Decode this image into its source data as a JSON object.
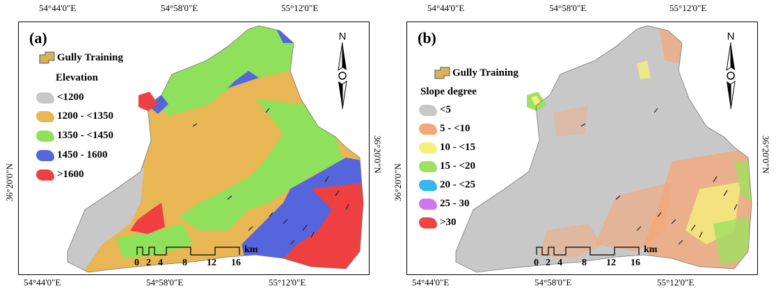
{
  "panels": [
    {
      "id": "a",
      "label": "(a)",
      "top_coords": [
        "54°44'0\"E",
        "54°58'0\"E",
        "55°12'0\"E"
      ],
      "bottom_coords": [
        "54°44'0\"E",
        "54°58'0\"E",
        "55°12'0\"E"
      ],
      "left_coord": "36°20'0\"N",
      "right_coord": "36°20'0\"N",
      "gully_label": "Gully Training",
      "legend_title": "Elevation",
      "legend_items": [
        {
          "label": "<1200",
          "color": "#c8c8c8"
        },
        {
          "label": "1200 - <1350",
          "color": "#e8b654"
        },
        {
          "label": "1350 - <1450",
          "color": "#8fe05a"
        },
        {
          "label": "1450 - 1600",
          "color": "#5566dd"
        },
        {
          "label": ">1600",
          "color": "#ee4040"
        }
      ],
      "north": "N",
      "scale": {
        "ticks": [
          "0",
          "2",
          "4",
          "8",
          "12",
          "16"
        ],
        "unit": "km"
      }
    },
    {
      "id": "b",
      "label": "(b)",
      "top_coords": [
        "54°44'0\"E",
        "54°58'0\"E",
        "55°12'0\"E"
      ],
      "bottom_coords": [
        "54°44'0\"E",
        "54°58'0\"E",
        "55°12'0\"E"
      ],
      "left_coord": "36°20'0\"N",
      "right_coord": "36°20'0\"N",
      "gully_label": "Gully Training",
      "legend_title": "Slope degree",
      "legend_items": [
        {
          "label": "<5",
          "color": "#c8c8c8"
        },
        {
          "label": "5 - <10",
          "color": "#f5a777"
        },
        {
          "label": "10 - <15",
          "color": "#f4f07a"
        },
        {
          "label": "15 - <20",
          "color": "#9fe060"
        },
        {
          "label": "20 - <25",
          "color": "#34b8ec"
        },
        {
          "label": "25 - 30",
          "color": "#cc77ee"
        },
        {
          "label": ">30",
          "color": "#ee4444"
        }
      ],
      "north": "N",
      "scale": {
        "ticks": [
          "0",
          "2",
          "4",
          "8",
          "12",
          "16"
        ],
        "unit": "km"
      }
    }
  ],
  "gully_color": "#d9b35a"
}
